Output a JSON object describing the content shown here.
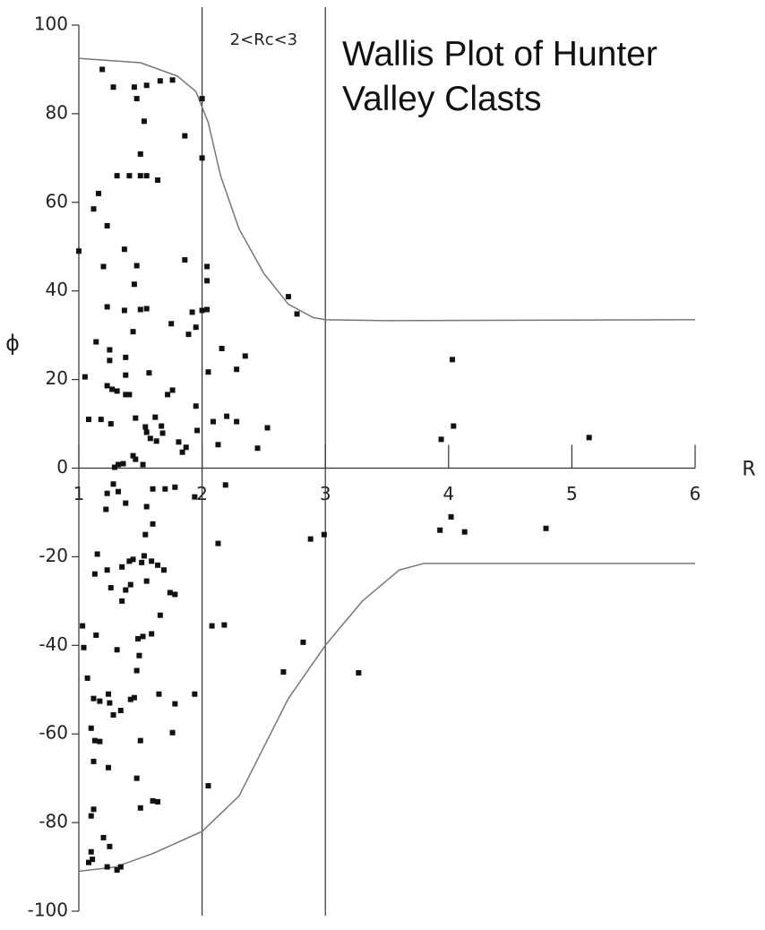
{
  "chart_data": {
    "type": "scatter",
    "title": "Wallis Plot of Hunter Valley Clasts",
    "xlabel": "R",
    "ylabel": "ϕ",
    "annotation": "2<Rc<3",
    "color": "#111111",
    "line_color": "#777777",
    "xlim": [
      1,
      6
    ],
    "ylim": [
      -100,
      100
    ],
    "xticks": [
      1,
      2,
      3,
      4,
      5,
      6
    ],
    "yticks": [
      -100,
      -80,
      -60,
      -40,
      -20,
      0,
      20,
      40,
      60,
      80,
      100
    ],
    "vlines": [
      2,
      3
    ],
    "x": [
      1.0,
      1.05,
      1.08,
      1.18,
      1.26,
      1.12,
      1.16,
      1.19,
      1.28,
      1.31,
      1.23,
      1.2,
      1.23,
      1.14,
      1.25,
      1.25,
      1.23,
      1.27,
      1.31,
      1.38,
      1.41,
      1.38,
      1.38,
      1.37,
      1.37,
      1.41,
      1.45,
      1.55,
      1.47,
      1.53,
      1.5,
      1.5,
      1.55,
      1.64,
      1.66,
      1.76,
      1.86,
      2.0,
      2.0,
      1.86,
      1.47,
      1.45,
      1.5,
      1.55,
      1.44,
      1.57,
      1.72,
      1.76,
      1.75,
      1.92,
      1.89,
      1.95,
      2.0,
      2.04,
      2.04,
      2.04,
      2.05,
      2.16,
      2.28,
      2.35,
      1.95,
      1.96,
      2.09,
      2.2,
      2.28,
      2.13,
      2.45,
      2.53,
      1.46,
      1.54,
      1.62,
      1.67,
      1.58,
      1.63,
      1.55,
      1.68,
      1.81,
      1.87,
      1.84,
      1.44,
      1.46,
      1.52,
      1.32,
      1.29,
      1.36,
      2.7,
      2.77,
      3.94,
      4.04,
      4.03,
      5.14,
      1.23,
      1.28,
      1.32,
      1.38,
      1.55,
      1.6,
      1.7,
      1.78,
      1.94,
      2.19,
      2.13,
      2.88,
      2.99,
      3.93,
      4.02,
      4.13,
      4.79,
      1.22,
      1.15,
      1.13,
      1.23,
      1.35,
      1.41,
      1.44,
      1.51,
      1.59,
      1.64,
      1.53,
      1.54,
      1.6,
      1.69,
      1.55,
      1.42,
      1.38,
      1.35,
      1.26,
      1.74,
      1.78,
      1.66,
      1.03,
      1.04,
      1.14,
      1.31,
      1.48,
      1.52,
      1.59,
      1.49,
      1.47,
      1.07,
      1.12,
      1.17,
      1.25,
      1.24,
      1.28,
      1.34,
      1.42,
      1.45,
      1.65,
      1.78,
      1.94,
      1.1,
      1.13,
      1.17,
      1.5,
      1.76,
      1.12,
      1.24,
      1.47,
      2.05,
      1.6,
      1.64,
      1.5,
      1.12,
      1.1,
      1.2,
      1.1,
      1.25,
      1.11,
      1.08,
      1.23,
      1.31,
      1.34,
      2.08,
      2.18,
      2.82,
      2.66,
      3.27
    ],
    "values": [
      49,
      20.6,
      11,
      11,
      10,
      58.5,
      62,
      90,
      86,
      66,
      54.7,
      45.5,
      36.4,
      28.5,
      26.7,
      24.3,
      18.6,
      17.8,
      17.4,
      16.6,
      16.6,
      21,
      25,
      35.6,
      49.4,
      66,
      86,
      86.4,
      83.4,
      78.3,
      70.9,
      66,
      66,
      65,
      87.4,
      87.6,
      75,
      83.4,
      70,
      47,
      45.7,
      41.5,
      35.8,
      36,
      30.8,
      21.5,
      16.6,
      17.6,
      32.6,
      35.2,
      30.2,
      31.8,
      35.6,
      35.8,
      45.5,
      42.3,
      21.7,
      27,
      22.3,
      25.3,
      14,
      8.5,
      10.5,
      11.7,
      10.5,
      5.3,
      4.5,
      9.1,
      11.3,
      9.3,
      11.5,
      9.5,
      6.7,
      6.1,
      8.1,
      7.9,
      5.9,
      4.7,
      3.6,
      2.8,
      2,
      0.8,
      0.8,
      0.2,
      1,
      38.7,
      34.8,
      6.5,
      9.5,
      24.5,
      6.9,
      -5.7,
      -3.6,
      -5.3,
      -7.9,
      -8.7,
      -4.7,
      -4.7,
      -4.3,
      -6.5,
      -3.8,
      -17,
      -16,
      -15,
      -14,
      -11,
      -14.4,
      -13.6,
      -9.3,
      -19.4,
      -23.9,
      -23,
      -22.3,
      -21,
      -20.6,
      -21.3,
      -21,
      -21.9,
      -19.8,
      -15,
      -12.6,
      -23,
      -25.5,
      -26.3,
      -27.5,
      -30,
      -27,
      -28.1,
      -28.5,
      -33.2,
      -35.6,
      -40.5,
      -37.7,
      -41,
      -38.5,
      -38,
      -37.4,
      -42.3,
      -45.7,
      -47.4,
      -52,
      -52.6,
      -53,
      -51,
      -55.7,
      -54.7,
      -52.2,
      -51.8,
      -51,
      -53.2,
      -51,
      -58.7,
      -61.5,
      -61.7,
      -61.5,
      -59.7,
      -66.2,
      -67.6,
      -70,
      -71.7,
      -75.1,
      -75.3,
      -76.7,
      -77,
      -78.5,
      -83.4,
      -86.6,
      -85.4,
      -88.3,
      -89,
      -90,
      -90.7,
      -90,
      -35.6,
      -35.4,
      -39.3,
      -46,
      -46.2
    ],
    "curves": [
      {
        "x": [
          1,
          1.5,
          1.8,
          1.95,
          2.05,
          2.15,
          2.3,
          2.5,
          2.7,
          2.9,
          3,
          3.5,
          6
        ],
        "values": [
          92.5,
          91.5,
          88.5,
          85,
          78,
          66,
          54,
          44,
          37,
          34,
          33.5,
          33.3,
          33.5
        ]
      },
      {
        "x": [
          1,
          1.3,
          1.6,
          2,
          2.3,
          2.5,
          2.7,
          3,
          3.3,
          3.6,
          3.8,
          6
        ],
        "values": [
          -91,
          -90,
          -87,
          -82,
          -74,
          -63,
          -52,
          -40,
          -30,
          -23,
          -21.5,
          -21.5
        ]
      }
    ]
  }
}
